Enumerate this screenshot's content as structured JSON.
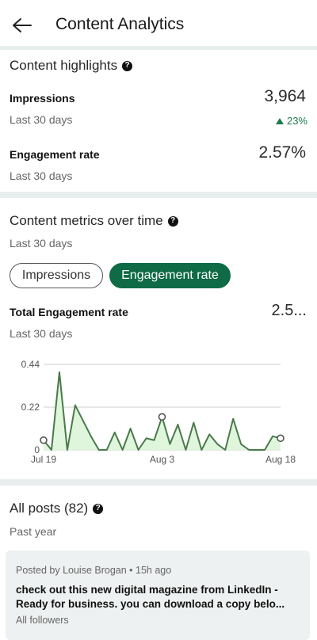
{
  "header": {
    "title": "Content Analytics"
  },
  "highlights": {
    "title": "Content highlights",
    "impressions_label": "Impressions",
    "impressions_value": "3,964",
    "impressions_period": "Last 30 days",
    "impressions_delta": "23%",
    "engagement_label": "Engagement rate",
    "engagement_value": "2.57%",
    "engagement_period": "Last 30 days"
  },
  "metrics": {
    "title": "Content metrics over time",
    "period": "Last 30 days",
    "chips": [
      "Impressions",
      "Engagement rate"
    ],
    "selected_chip": "Engagement rate",
    "total_label": "Total Engagement rate",
    "total_value": "2.5...",
    "total_period": "Last 30 days"
  },
  "chart_data": {
    "type": "area",
    "x": [
      "Jul 19",
      "Jul 20",
      "Jul 21",
      "Jul 22",
      "Jul 23",
      "Jul 24",
      "Jul 25",
      "Jul 26",
      "Jul 27",
      "Jul 28",
      "Jul 29",
      "Jul 30",
      "Jul 31",
      "Aug 1",
      "Aug 2",
      "Aug 3",
      "Aug 4",
      "Aug 5",
      "Aug 6",
      "Aug 7",
      "Aug 8",
      "Aug 9",
      "Aug 10",
      "Aug 11",
      "Aug 12",
      "Aug 13",
      "Aug 14",
      "Aug 15",
      "Aug 16",
      "Aug 17",
      "Aug 18"
    ],
    "values": [
      0.05,
      0.0,
      0.4,
      0.0,
      0.23,
      0.15,
      0.07,
      0.0,
      0.0,
      0.09,
      0.0,
      0.11,
      0.0,
      0.06,
      0.05,
      0.17,
      0.03,
      0.13,
      0.0,
      0.14,
      0.0,
      0.08,
      0.03,
      0.0,
      0.16,
      0.03,
      0.0,
      0.0,
      0.0,
      0.07,
      0.06
    ],
    "highlighted_points": [
      "Jul 19",
      "Aug 3",
      "Aug 18"
    ],
    "x_ticks": [
      "Jul 19",
      "Aug 3",
      "Aug 18"
    ],
    "y_ticks": [
      "0.44",
      "0.22",
      "0"
    ],
    "ylim": [
      0,
      0.44
    ],
    "grid": true,
    "line_color": "#4a7a4a",
    "fill_color": "#dff5dc"
  },
  "all_posts": {
    "title": "All posts (82)",
    "period": "Past year",
    "posts": [
      {
        "meta": "Posted by Louise Brogan • 15h ago",
        "text": "check out this new digital magazine from LinkedIn - Ready for business.  you can download a copy belo...",
        "audience": "All followers"
      }
    ]
  },
  "colors": {
    "accent": "#0e6b45",
    "positive": "#1e7a4a",
    "divider": "#e8eeed"
  },
  "icons": {
    "back": "arrow-left-icon",
    "help": "help-circle-icon"
  }
}
